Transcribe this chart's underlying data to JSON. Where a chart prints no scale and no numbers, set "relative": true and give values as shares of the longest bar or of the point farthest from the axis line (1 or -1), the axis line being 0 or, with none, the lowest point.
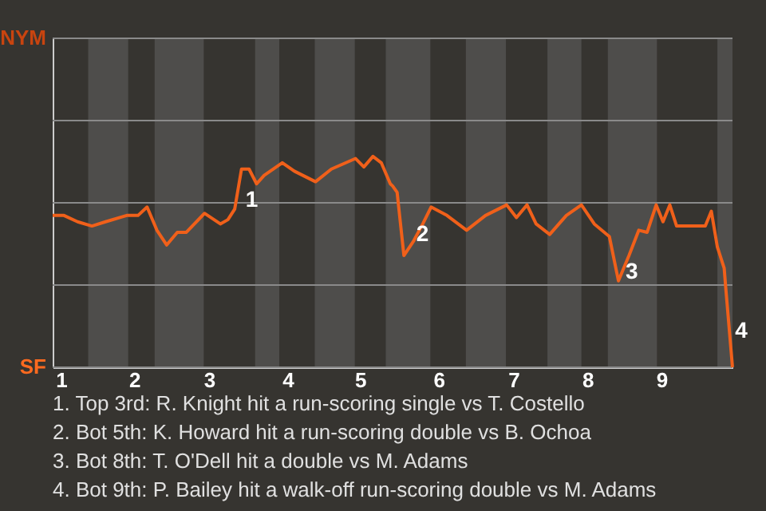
{
  "chart_data": {
    "type": "line",
    "relative": true,
    "x": [
      1.0,
      1.15,
      1.33,
      1.52,
      1.7,
      1.98,
      2.13,
      2.25,
      2.38,
      2.51,
      2.65,
      2.77,
      3.01,
      3.22,
      3.32,
      3.41,
      3.5,
      3.6,
      3.7,
      3.8,
      4.04,
      4.2,
      4.48,
      4.69,
      5.01,
      5.12,
      5.24,
      5.35,
      5.47,
      5.5,
      5.56,
      5.65,
      5.78,
      5.9,
      6.01,
      6.22,
      6.48,
      6.73,
      7.01,
      7.14,
      7.28,
      7.4,
      7.58,
      7.8,
      8.0,
      8.17,
      8.37,
      8.49,
      8.63,
      8.76,
      8.87,
      8.99,
      9.08,
      9.17,
      9.26,
      9.64,
      9.72,
      9.8,
      9.89,
      9.91,
      10.0
    ],
    "series": [
      {
        "color": "#f0601a",
        "values": [
          0.72,
          0.72,
          0.69,
          0.67,
          0.69,
          0.72,
          0.72,
          0.76,
          0.65,
          0.58,
          0.64,
          0.64,
          0.73,
          0.68,
          0.7,
          0.75,
          0.94,
          0.94,
          0.87,
          0.91,
          0.97,
          0.93,
          0.88,
          0.94,
          0.99,
          0.95,
          1,
          0.97,
          0.87,
          0.86,
          0.83,
          0.53,
          0.6,
          0.68,
          0.76,
          0.72,
          0.65,
          0.72,
          0.77,
          0.71,
          0.77,
          0.68,
          0.63,
          0.72,
          0.77,
          0.68,
          0.62,
          0.41,
          0.53,
          0.65,
          0.64,
          0.77,
          0.69,
          0.77,
          0.67,
          0.67,
          0.74,
          0.57,
          0.47,
          0.38,
          0
        ]
      }
    ],
    "xlim": [
      1,
      10
    ],
    "xticks": [
      {
        "value": 1.11,
        "label": "1"
      },
      {
        "value": 2.08,
        "label": "2"
      },
      {
        "value": 3.07,
        "label": "3"
      },
      {
        "value": 4.11,
        "label": "4"
      },
      {
        "value": 5.07,
        "label": "5"
      },
      {
        "value": 6.11,
        "label": "6"
      },
      {
        "value": 7.1,
        "label": "7"
      },
      {
        "value": 8.08,
        "label": "8"
      },
      {
        "value": 9.06,
        "label": "9"
      }
    ],
    "ref_lines": [
      {
        "axis": "y",
        "value": 0,
        "label": "SF"
      },
      {
        "axis": "y",
        "value": 0.39,
        "label": null
      },
      {
        "axis": "y",
        "value": 0.78,
        "label": null
      },
      {
        "axis": "y",
        "value": 1.17,
        "label": null
      },
      {
        "axis": "y",
        "value": 1.56,
        "label": "NYM"
      }
    ],
    "bands": [
      {
        "axis": "x",
        "from": 1.47,
        "to": 2,
        "label": null,
        "color": "#4e4d4b"
      },
      {
        "axis": "x",
        "from": 2.35,
        "to": 3,
        "label": null,
        "color": "#4e4d4b"
      },
      {
        "axis": "x",
        "from": 3.68,
        "to": 4,
        "label": null,
        "color": "#4e4d4b"
      },
      {
        "axis": "x",
        "from": 4.47,
        "to": 5,
        "label": null,
        "color": "#4e4d4b"
      },
      {
        "axis": "x",
        "from": 5.41,
        "to": 6,
        "label": null,
        "color": "#4e4d4b"
      },
      {
        "axis": "x",
        "from": 6.47,
        "to": 7,
        "label": null,
        "color": "#4e4d4b"
      },
      {
        "axis": "x",
        "from": 7.55,
        "to": 8,
        "label": null,
        "color": "#4e4d4b"
      },
      {
        "axis": "x",
        "from": 8.35,
        "to": 9,
        "label": null,
        "color": "#4e4d4b"
      },
      {
        "axis": "x",
        "from": 9.8,
        "to": 10,
        "label": null,
        "color": "#4e4d4b"
      }
    ],
    "annotations": [
      {
        "text": "1",
        "x": 3.47,
        "y": 0.79
      },
      {
        "text": "2",
        "x": 5.73,
        "y": 0.63
      },
      {
        "text": "3",
        "x": 8.5,
        "y": 0.45
      },
      {
        "text": "4",
        "x": 9.95,
        "y": 0.17
      },
      "1. Top 3rd: R. Knight hit a run-scoring single vs T. Costello",
      "2. Bot 5th: K. Howard hit a run-scoring double vs B. Ochoa",
      "3. Bot 8th: T. O'Dell hit a double vs M. Adams",
      "4. Bot 9th: P. Bailey hit a walk-off run-scoring double vs M. Adams"
    ]
  }
}
